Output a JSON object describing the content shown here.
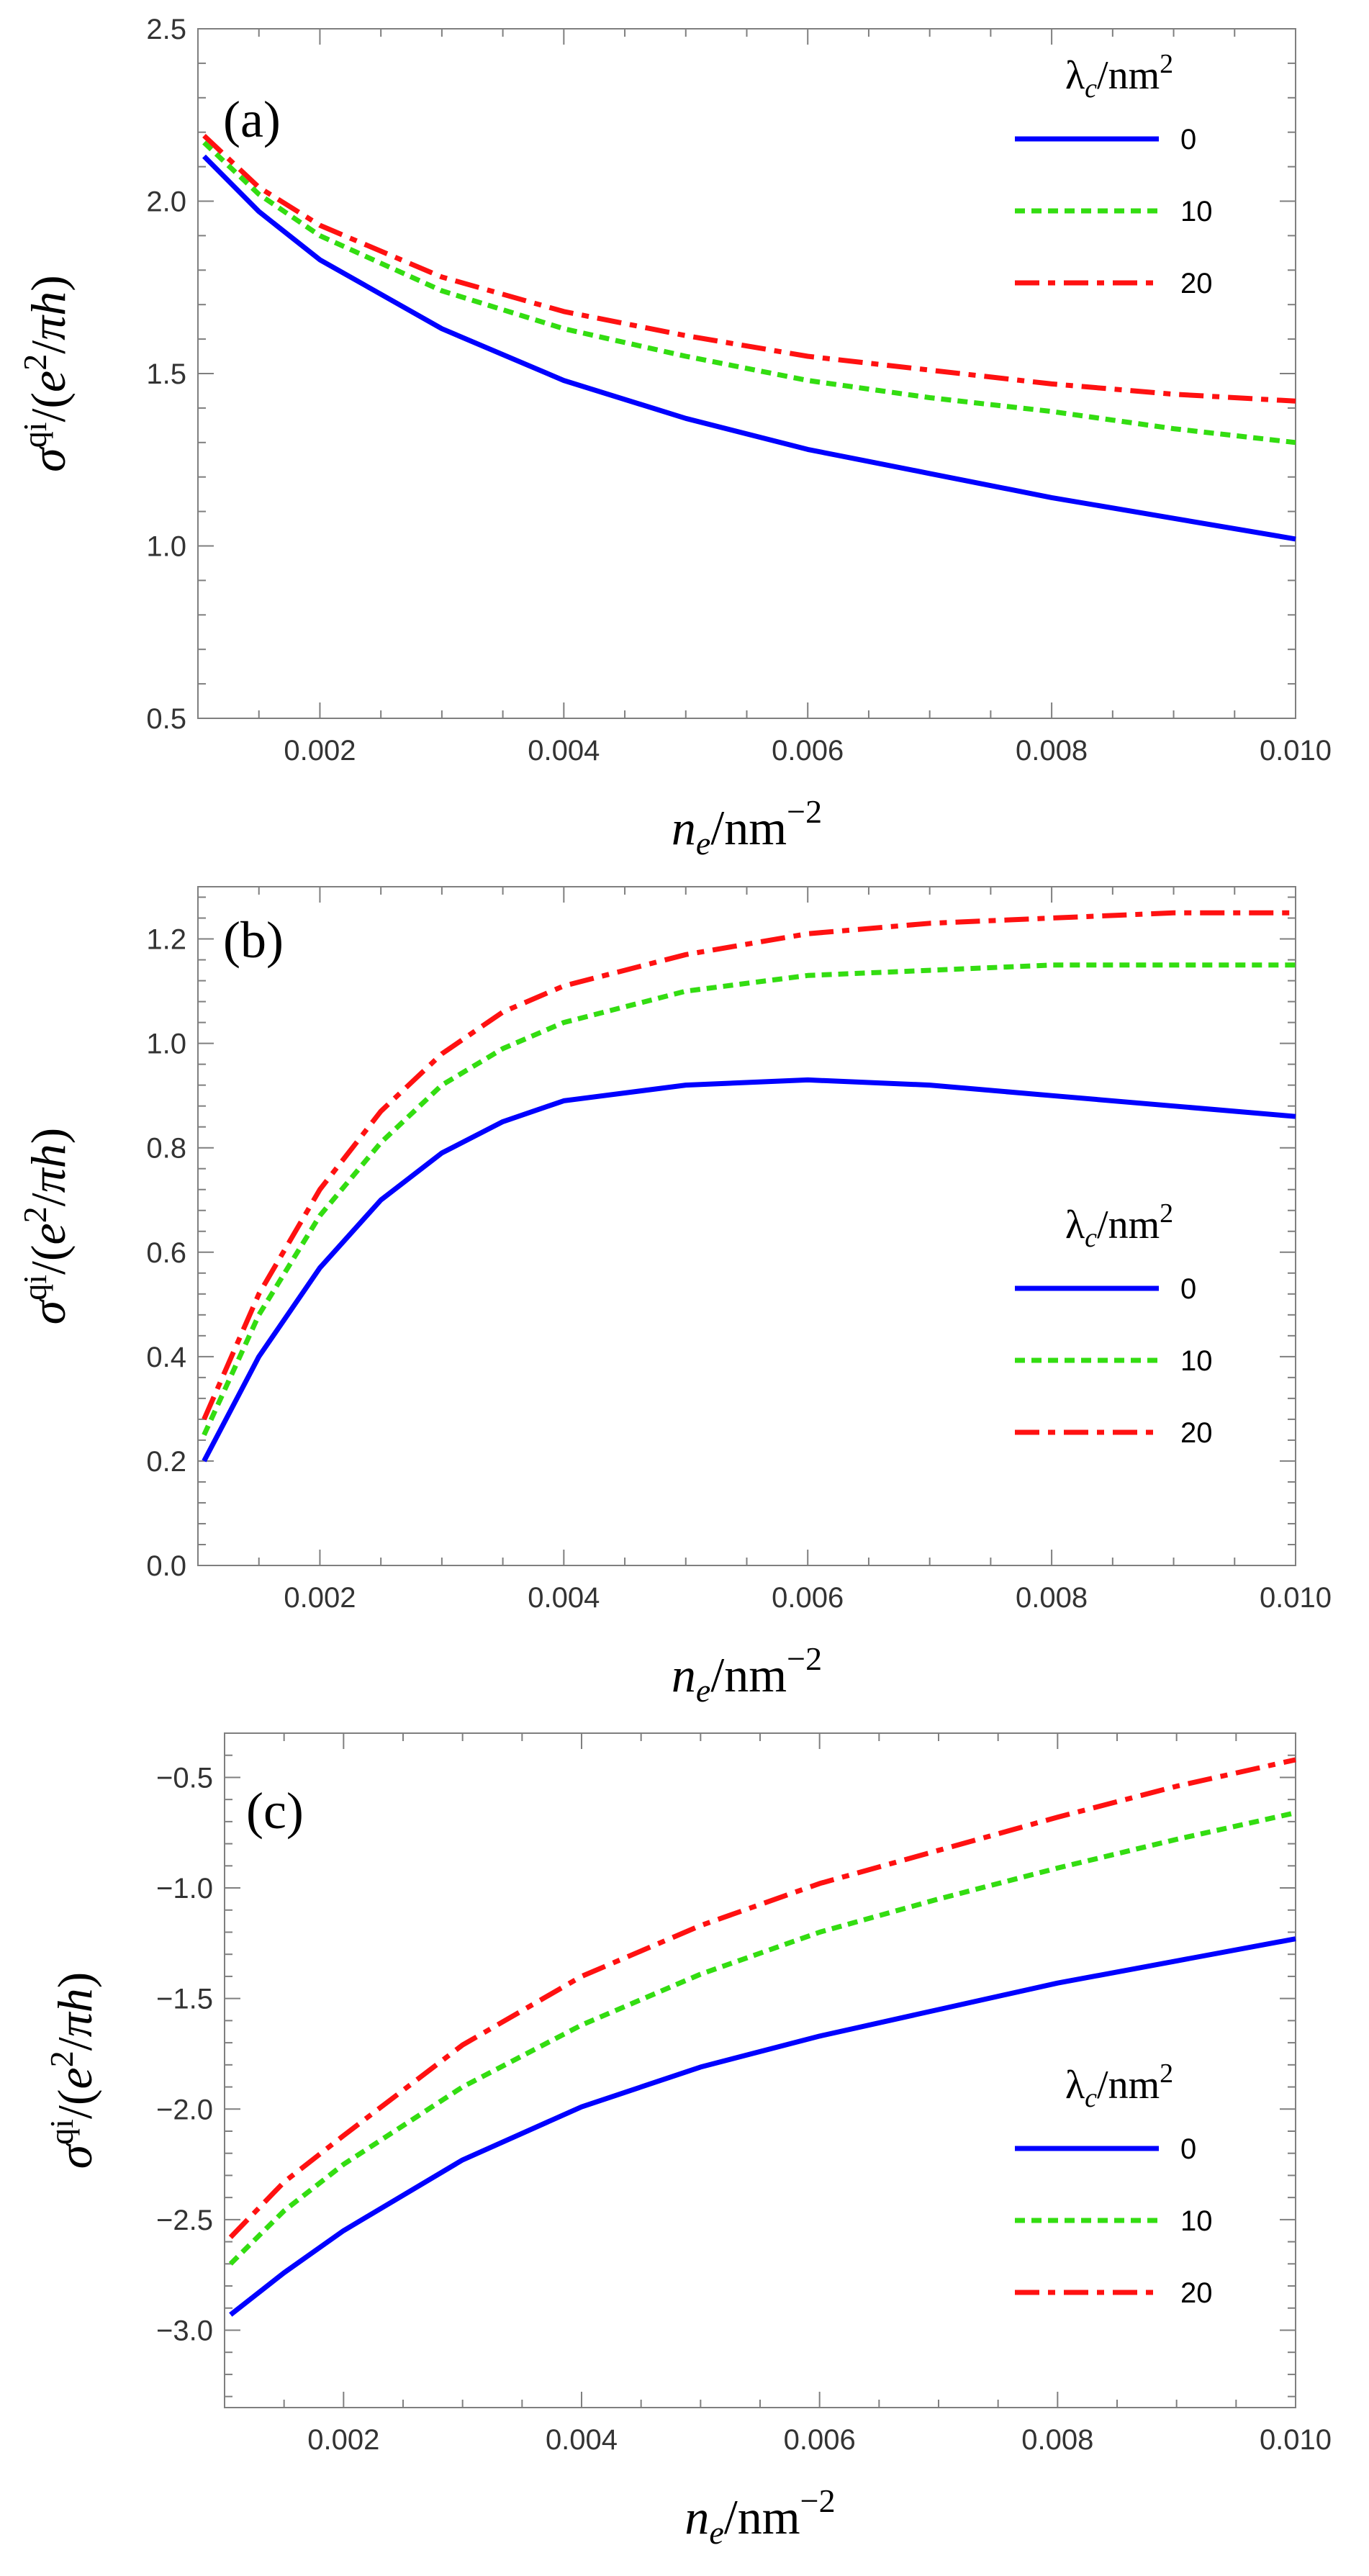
{
  "figure": {
    "colors": {
      "s0": "#0000ff",
      "s10": "#33dd11",
      "s20": "#ff1111",
      "axis": "#7f7f7f"
    }
  },
  "chart_data": [
    {
      "type": "line",
      "panel_label": "(a)",
      "xlabel": "n_e/nm^-2",
      "ylabel": "σ^qi/(e^2/πh)",
      "xlim": [
        0.001,
        0.01
      ],
      "ylim": [
        0.5,
        2.5
      ],
      "xticks": [
        "0.002",
        "0.004",
        "0.006",
        "0.008",
        "0.010"
      ],
      "yticks": [
        "0.5",
        "1.0",
        "1.5",
        "2.0",
        "2.5"
      ],
      "legend": {
        "title": "λc/nm²",
        "position": "top-right"
      },
      "x": [
        0.00105,
        0.0015,
        0.002,
        0.003,
        0.004,
        0.005,
        0.006,
        0.007,
        0.008,
        0.009,
        0.01
      ],
      "series": [
        {
          "name": "0",
          "style": "solid",
          "values": [
            2.13,
            1.97,
            1.83,
            1.63,
            1.48,
            1.37,
            1.28,
            1.21,
            1.14,
            1.08,
            1.02
          ]
        },
        {
          "name": "10",
          "style": "dotted",
          "values": [
            2.17,
            2.02,
            1.9,
            1.74,
            1.63,
            1.55,
            1.48,
            1.43,
            1.39,
            1.34,
            1.3
          ]
        },
        {
          "name": "20",
          "style": "dashdot",
          "values": [
            2.19,
            2.04,
            1.93,
            1.78,
            1.68,
            1.61,
            1.55,
            1.51,
            1.47,
            1.44,
            1.42
          ]
        }
      ]
    },
    {
      "type": "line",
      "panel_label": "(b)",
      "xlabel": "n_e/nm^-2",
      "ylabel": "σ^qi/(e^2/πh)",
      "xlim": [
        0.001,
        0.01
      ],
      "ylim": [
        0.0,
        1.3
      ],
      "xticks": [
        "0.002",
        "0.004",
        "0.006",
        "0.008",
        "0.010"
      ],
      "yticks": [
        "0.0",
        "0.2",
        "0.4",
        "0.6",
        "0.8",
        "1.0",
        "1.2"
      ],
      "legend": {
        "title": "λc/nm²",
        "position": "center-right"
      },
      "x": [
        0.00105,
        0.0015,
        0.002,
        0.0025,
        0.003,
        0.0035,
        0.004,
        0.005,
        0.006,
        0.007,
        0.008,
        0.009,
        0.01
      ],
      "series": [
        {
          "name": "0",
          "style": "solid",
          "values": [
            0.2,
            0.4,
            0.57,
            0.7,
            0.79,
            0.85,
            0.89,
            0.92,
            0.93,
            0.92,
            0.9,
            0.88,
            0.86
          ]
        },
        {
          "name": "10",
          "style": "dotted",
          "values": [
            0.25,
            0.48,
            0.67,
            0.81,
            0.92,
            0.99,
            1.04,
            1.1,
            1.13,
            1.14,
            1.15,
            1.15,
            1.15
          ]
        },
        {
          "name": "20",
          "style": "dashdot",
          "values": [
            0.28,
            0.52,
            0.72,
            0.87,
            0.98,
            1.06,
            1.11,
            1.17,
            1.21,
            1.23,
            1.24,
            1.25,
            1.25
          ]
        }
      ]
    },
    {
      "type": "line",
      "panel_label": "(c)",
      "xlabel": "n_e/nm^-2",
      "ylabel": "σ^qi/(e^2/πh)",
      "xlim": [
        0.001,
        0.01
      ],
      "ylim": [
        -3.35,
        -0.3
      ],
      "xticks": [
        "0.002",
        "0.004",
        "0.006",
        "0.008",
        "0.010"
      ],
      "yticks": [
        "-3.0",
        "-2.5",
        "-2.0",
        "-1.5",
        "-1.0",
        "-0.5"
      ],
      "legend": {
        "title": "λc/nm²",
        "position": "center-right"
      },
      "x": [
        0.00105,
        0.0015,
        0.002,
        0.003,
        0.004,
        0.005,
        0.006,
        0.007,
        0.008,
        0.009,
        0.01
      ],
      "series": [
        {
          "name": "0",
          "style": "solid",
          "values": [
            -2.93,
            -2.74,
            -2.55,
            -2.23,
            -1.99,
            -1.81,
            -1.67,
            -1.55,
            -1.43,
            -1.33,
            -1.23
          ]
        },
        {
          "name": "10",
          "style": "dotted",
          "values": [
            -2.7,
            -2.46,
            -2.25,
            -1.9,
            -1.62,
            -1.39,
            -1.2,
            -1.05,
            -0.91,
            -0.78,
            -0.66
          ]
        },
        {
          "name": "20",
          "style": "dashdot",
          "values": [
            -2.58,
            -2.33,
            -2.12,
            -1.71,
            -1.4,
            -1.17,
            -0.98,
            -0.83,
            -0.68,
            -0.54,
            -0.42
          ]
        }
      ]
    }
  ]
}
